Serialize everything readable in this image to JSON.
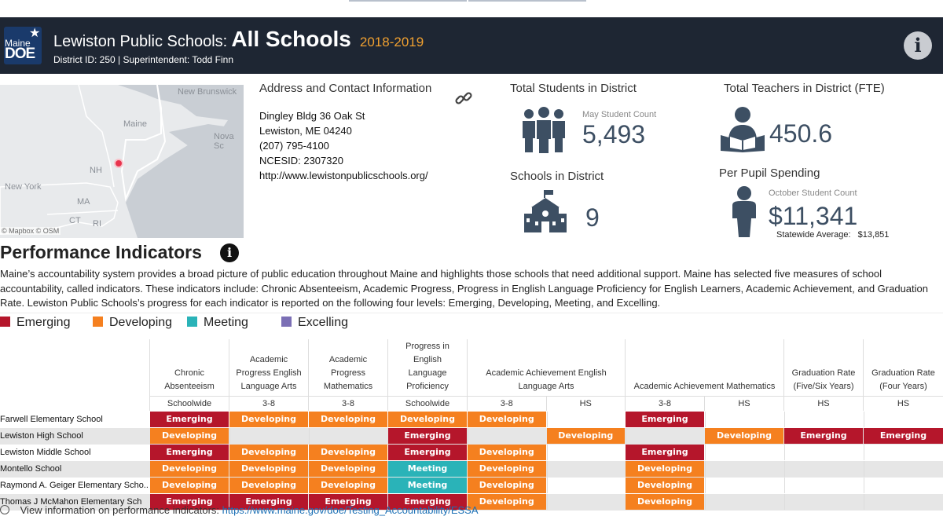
{
  "header": {
    "district_name": "Lewiston Public Schools:",
    "view": "All Schools",
    "year": "2018-2019",
    "subtitle": "District ID: 250 | Superintendent: Todd Finn",
    "logo_line1": "Maine",
    "logo_line2": "DOE"
  },
  "map": {
    "labels": [
      "New Brunswick",
      "Maine",
      "Nova Sc",
      "NH",
      "New York",
      "MA",
      "CT",
      "RI"
    ],
    "credit": "© Mapbox © OSM"
  },
  "contact": {
    "heading": "Address and Contact Information",
    "lines": [
      "Dingley Bldg 36 Oak St",
      "Lewiston, ME 04240",
      "(207) 795-4100",
      "NCESID: 2307320",
      "http://www.lewistonpublicschools.org/"
    ]
  },
  "stats": {
    "students": {
      "label": "Total Students in District",
      "sub": "May Student Count",
      "value": "5,493"
    },
    "schools": {
      "label": "Schools in District",
      "value": "9"
    },
    "teachers": {
      "label": "Total Teachers in District (FTE)",
      "value": "450.6"
    },
    "spending": {
      "label": "Per Pupil Spending",
      "sub": "October Student Count",
      "value": "$11,341",
      "statewide_label": "Statewide Average:",
      "statewide_value": "$13,851"
    }
  },
  "performance": {
    "title": "Performance Indicators",
    "description": "Maine’s accountability system provides a broad picture of public education throughout Maine and highlights those schools that need additional support. Maine has selected five measures of school accountability, called indicators. These indicators include: Chronic Absenteeism, Academic Progress, Progress in English Language Proficiency for English Learners, Academic Achievement, and Graduation Rate. Lewiston Public Schools’s progress for each indicator is reported on the following four levels: Emerging, Developing, Meeting, and Excelling.",
    "legend": [
      {
        "label": "Emerging",
        "color": "#b5162b"
      },
      {
        "label": "Developing",
        "color": "#f5801f"
      },
      {
        "label": "Meeting",
        "color": "#2ab3b8"
      },
      {
        "label": "Excelling",
        "color": "#7b6fb5"
      }
    ],
    "columns": [
      {
        "title": "Chronic Absenteeism",
        "sub": [
          "Schoolwide"
        ]
      },
      {
        "title": "Academic Progress English Language Arts",
        "sub": [
          "3-8"
        ]
      },
      {
        "title": "Academic Progress Mathematics",
        "sub": [
          "3-8"
        ]
      },
      {
        "title": "Progress in English Language Proficiency",
        "sub": [
          "Schoolwide"
        ]
      },
      {
        "title": "Academic Achievement English Language Arts",
        "sub": [
          "3-8",
          "HS"
        ]
      },
      {
        "title": "Academic Achievement Mathematics",
        "sub": [
          "3-8",
          "HS"
        ]
      },
      {
        "title": "Graduation Rate (Five/Six Years)",
        "sub": [
          "HS"
        ]
      },
      {
        "title": "Graduation Rate (Four Years)",
        "sub": [
          "HS"
        ]
      }
    ],
    "rows": [
      {
        "school": "Farwell Elementary School",
        "values": [
          "Emerging",
          "Developing",
          "Developing",
          "Developing",
          "Developing",
          "",
          "Emerging",
          "",
          "",
          ""
        ]
      },
      {
        "school": "Lewiston High School",
        "values": [
          "Developing",
          "",
          "",
          "Emerging",
          "",
          "Developing",
          "",
          "Developing",
          "Emerging",
          "Emerging"
        ]
      },
      {
        "school": "Lewiston Middle School",
        "values": [
          "Emerging",
          "Developing",
          "Developing",
          "Emerging",
          "Developing",
          "",
          "Emerging",
          "",
          "",
          ""
        ]
      },
      {
        "school": "Montello School",
        "values": [
          "Developing",
          "Developing",
          "Developing",
          "Meeting",
          "Developing",
          "",
          "Developing",
          "",
          "",
          ""
        ]
      },
      {
        "school": "Raymond A. Geiger Elementary Scho..",
        "values": [
          "Developing",
          "Developing",
          "Developing",
          "Meeting",
          "Developing",
          "",
          "Developing",
          "",
          "",
          ""
        ]
      },
      {
        "school": "Thomas J McMahon Elementary Sch",
        "values": [
          "Emerging",
          "Emerging",
          "Emerging",
          "Emerging",
          "Developing",
          "",
          "Developing",
          "",
          "",
          ""
        ]
      }
    ]
  },
  "footer": {
    "text": "View information on performance indicators: ",
    "link": "https://www.maine.gov/doe/Testing_Accountability/ESSA"
  }
}
